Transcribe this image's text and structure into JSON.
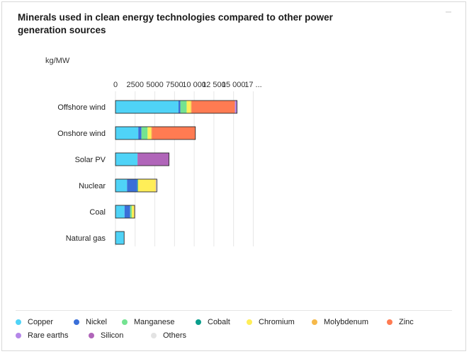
{
  "chart_data": {
    "type": "bar",
    "orientation": "horizontal",
    "stacked": true,
    "title": "Minerals used in clean energy technologies compared to other power generation sources",
    "unit_label": "kg/MW",
    "x_ticks": [
      "0",
      "2500",
      "5000",
      "7500",
      "10 000",
      "12 500",
      "15 000",
      "17 ..."
    ],
    "xlim": [
      0,
      17500
    ],
    "grid": true,
    "legend_position": "bottom",
    "categories": [
      "Offshore wind",
      "Onshore wind",
      "Solar PV",
      "Nuclear",
      "Coal",
      "Natural gas"
    ],
    "series": [
      {
        "name": "Copper",
        "color": "#4fd3f7",
        "values": [
          8000,
          2900,
          2800,
          1470,
          1150,
          1100
        ]
      },
      {
        "name": "Nickel",
        "color": "#3a6fd8",
        "values": [
          240,
          400,
          0,
          1300,
          720,
          0
        ]
      },
      {
        "name": "Manganese",
        "color": "#74e391",
        "values": [
          800,
          780,
          0,
          0,
          200,
          0
        ]
      },
      {
        "name": "Cobalt",
        "color": "#0a9e8c",
        "values": [
          0,
          0,
          0,
          90,
          0,
          0
        ]
      },
      {
        "name": "Chromium",
        "color": "#ffee58",
        "values": [
          520,
          450,
          0,
          2200,
          300,
          0
        ]
      },
      {
        "name": "Molybdenum",
        "color": "#f6b94a",
        "values": [
          110,
          100,
          0,
          70,
          70,
          0
        ]
      },
      {
        "name": "Zinc",
        "color": "#ff7b52",
        "values": [
          5500,
          5500,
          0,
          0,
          0,
          0
        ]
      },
      {
        "name": "Rare earths",
        "color": "#b587e8",
        "values": [
          270,
          15,
          0,
          0,
          0,
          0
        ]
      },
      {
        "name": "Silicon",
        "color": "#b065b9",
        "values": [
          0,
          0,
          4000,
          0,
          0,
          0
        ]
      },
      {
        "name": "Others",
        "color": "#e3e3e3",
        "values": [
          0,
          0,
          0,
          130,
          0,
          0
        ]
      }
    ]
  }
}
